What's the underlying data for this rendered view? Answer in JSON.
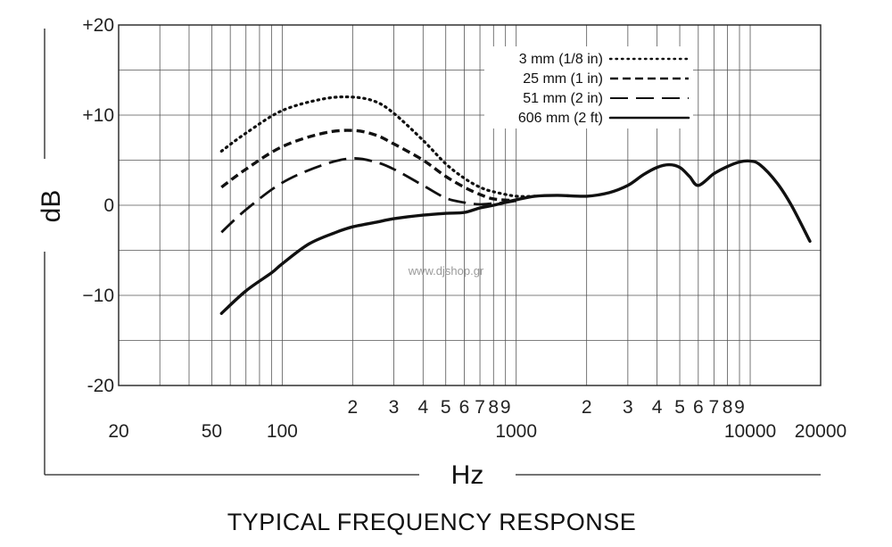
{
  "chart_data": {
    "type": "line",
    "title": "TYPICAL FREQUENCY RESPONSE",
    "xlabel": "Hz",
    "ylabel": "dB",
    "x_scale": "log",
    "xlim": [
      20,
      20000
    ],
    "ylim": [
      -20,
      20
    ],
    "grid": true,
    "legend_placement": "top-center",
    "y_ticks": [
      {
        "value": 20,
        "label": "+20"
      },
      {
        "value": 10,
        "label": "+10"
      },
      {
        "value": 0,
        "label": "0"
      },
      {
        "value": -10,
        "label": "−10"
      },
      {
        "value": -20,
        "label": "-20"
      }
    ],
    "x_ticks_upper": [
      {
        "value": 200,
        "label": "2"
      },
      {
        "value": 300,
        "label": "3"
      },
      {
        "value": 400,
        "label": "4"
      },
      {
        "value": 500,
        "label": "5"
      },
      {
        "value": 600,
        "label": "6"
      },
      {
        "value": 700,
        "label": "7"
      },
      {
        "value": 800,
        "label": "8"
      },
      {
        "value": 900,
        "label": "9"
      },
      {
        "value": 2000,
        "label": "2"
      },
      {
        "value": 3000,
        "label": "3"
      },
      {
        "value": 4000,
        "label": "4"
      },
      {
        "value": 5000,
        "label": "5"
      },
      {
        "value": 6000,
        "label": "6"
      },
      {
        "value": 7000,
        "label": "7"
      },
      {
        "value": 8000,
        "label": "8"
      },
      {
        "value": 9000,
        "label": "9"
      }
    ],
    "x_ticks_lower": [
      {
        "value": 20,
        "label": "20"
      },
      {
        "value": 50,
        "label": "50"
      },
      {
        "value": 100,
        "label": "100"
      },
      {
        "value": 1000,
        "label": "1000"
      },
      {
        "value": 10000,
        "label": "10000"
      },
      {
        "value": 20000,
        "label": "20000"
      }
    ],
    "series": [
      {
        "name": "3 mm (1/8 in)",
        "style": "dotted",
        "x": [
          55,
          70,
          100,
          150,
          200,
          250,
          300,
          400,
          500,
          600,
          700,
          800,
          1000,
          1200
        ],
        "y": [
          6,
          8,
          10.5,
          11.8,
          12,
          11.5,
          10.2,
          7.2,
          4.6,
          3.0,
          2.0,
          1.5,
          1.0,
          1.0
        ]
      },
      {
        "name": "25 mm (1 in)",
        "style": "short-dash",
        "x": [
          55,
          70,
          100,
          150,
          200,
          250,
          300,
          400,
          500,
          600,
          700,
          800,
          1000
        ],
        "y": [
          2,
          4,
          6.5,
          8,
          8.3,
          7.8,
          6.8,
          5.0,
          3.2,
          2.0,
          1.2,
          0.7,
          0.5
        ]
      },
      {
        "name": "51 mm (2 in)",
        "style": "long-dash",
        "x": [
          55,
          70,
          100,
          150,
          200,
          250,
          300,
          400,
          500,
          600,
          700,
          800,
          900,
          1000
        ],
        "y": [
          -3,
          -0.5,
          2.5,
          4.5,
          5.2,
          4.8,
          4.0,
          2.2,
          0.8,
          0.3,
          0.1,
          0.2,
          0.3,
          0.5
        ]
      },
      {
        "name": "606 mm (2 ft)",
        "style": "solid",
        "x": [
          55,
          70,
          90,
          100,
          130,
          170,
          200,
          250,
          300,
          400,
          500,
          600,
          700,
          800,
          1000,
          1200,
          1500,
          2000,
          2500,
          3000,
          3500,
          4000,
          4500,
          5000,
          5500,
          6000,
          7000,
          8000,
          9000,
          10000,
          11000,
          13000,
          15000,
          18000
        ],
        "y": [
          -12,
          -9.5,
          -7.5,
          -6.5,
          -4.3,
          -3.0,
          -2.4,
          -1.9,
          -1.5,
          -1.1,
          -0.9,
          -0.8,
          -0.3,
          0.0,
          0.6,
          1.0,
          1.1,
          1.0,
          1.4,
          2.2,
          3.4,
          4.2,
          4.5,
          4.2,
          3.2,
          2.2,
          3.5,
          4.3,
          4.8,
          4.9,
          4.5,
          2.5,
          0.0,
          -4.0
        ]
      }
    ],
    "watermark": "www.djshop.gr"
  }
}
